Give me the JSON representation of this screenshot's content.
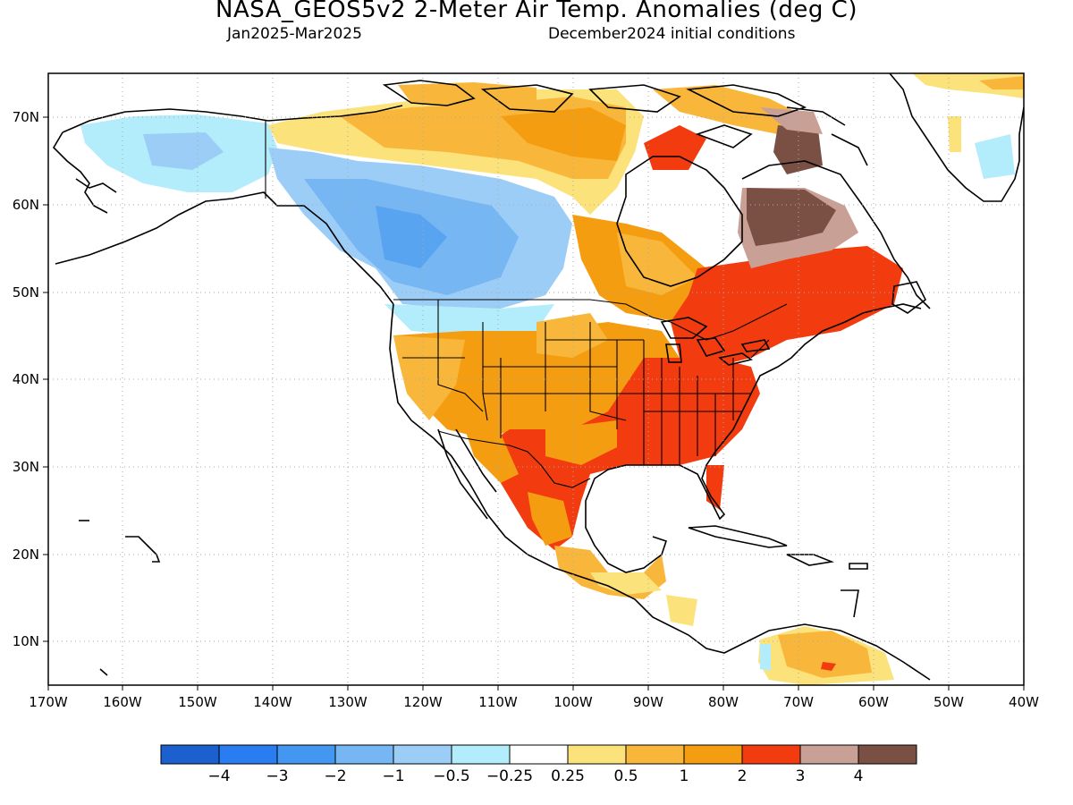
{
  "title": "NASA_GEOS5v2 2-Meter Air Temp. Anomalies (deg C)",
  "subtitle_left": "Jan2025-Mar2025",
  "subtitle_right": "December2024 initial conditions",
  "map": {
    "projection": "cylindrical equidistant",
    "lon_range": [
      -170,
      -40
    ],
    "lat_range": [
      5,
      75
    ],
    "lon_ticks": [
      "170W",
      "160W",
      "150W",
      "140W",
      "130W",
      "120W",
      "110W",
      "100W",
      "90W",
      "80W",
      "70W",
      "60W",
      "50W",
      "40W"
    ],
    "lat_ticks": [
      "70N",
      "60N",
      "50N",
      "40N",
      "30N",
      "20N",
      "10N"
    ],
    "grid": "dotted, every 10 degrees",
    "anomaly_pattern": [
      {
        "region": "Western Canada / Pacific Northwest",
        "category": "-1 to -0.5"
      },
      {
        "region": "Alaska",
        "category": "-0.5 to 0.25"
      },
      {
        "region": "US Southwest / Great Plains",
        "category": "1 to 2"
      },
      {
        "region": "US Southeast / Texas / Northern Mexico",
        "category": "2 to 3"
      },
      {
        "region": "Eastern Canada / Great Lakes",
        "category": "2 to 3"
      },
      {
        "region": "Northern Quebec / Labrador",
        "category": "above 4"
      },
      {
        "region": "Central America / Northern South America",
        "category": "0.25 to 1"
      }
    ]
  },
  "colorbar": {
    "colors": [
      "#1c5fcf",
      "#2a7df0",
      "#4497f0",
      "#75b6f3",
      "#9ccdf6",
      "#b3ecfa",
      "#ffffff",
      "#fce27a",
      "#f8b73a",
      "#f59d10",
      "#f23c10",
      "#c8a096",
      "#7a5044"
    ],
    "labels": [
      "−4",
      "−3",
      "−2",
      "−1",
      "−0.5",
      "−0.25",
      "0.25",
      "0.5",
      "1",
      "2",
      "3",
      "4"
    ]
  },
  "colors": {
    "land_outline": "#000000",
    "grid": "#aaaaaa",
    "frame": "#000000"
  }
}
